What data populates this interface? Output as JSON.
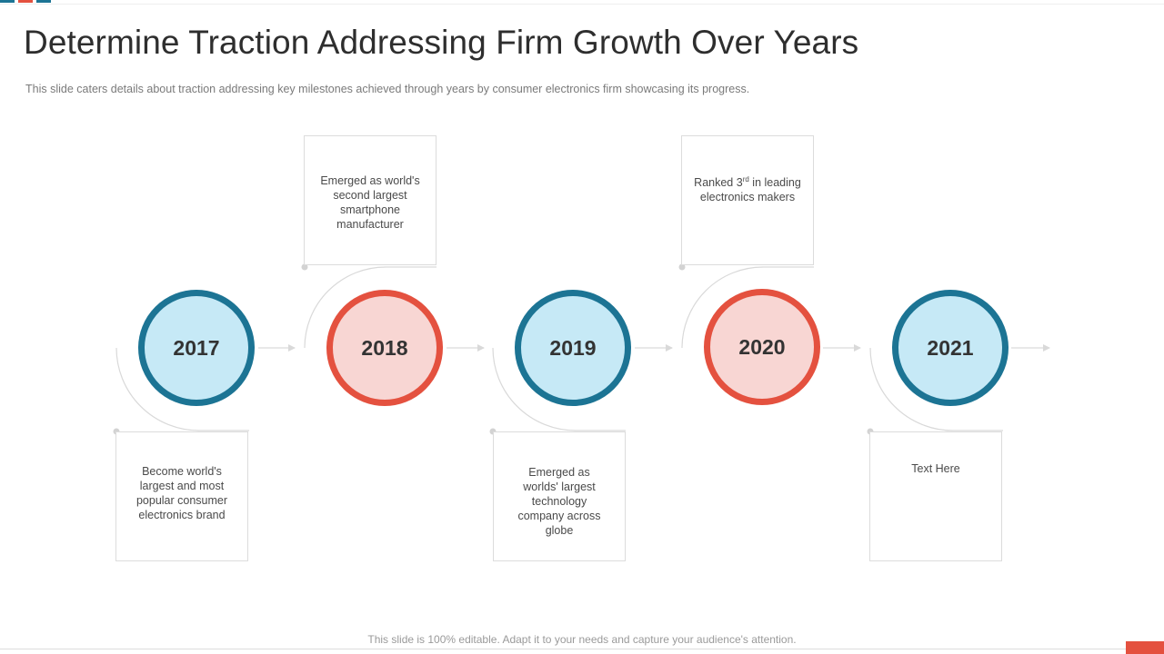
{
  "header": {
    "title": "Determine Traction Addressing Firm Growth Over Years",
    "subtitle": "This slide caters details about traction addressing  key milestones achieved  through  years by consumer electronics firm showcasing its progress."
  },
  "colors": {
    "blue_ring": "#1c7494",
    "blue_fill": "#c6e9f6",
    "red_ring": "#e4513f",
    "red_fill": "#f8d6d3",
    "connector": "#d9d9d9"
  },
  "timeline": [
    {
      "year": "2017",
      "theme": "blue",
      "text_lines": [
        "Become world's",
        "largest and most",
        "popular consumer",
        "electronics brand"
      ]
    },
    {
      "year": "2018",
      "theme": "red",
      "text_lines": [
        "Emerged as world's",
        "second largest",
        "smartphone",
        "manufacturer"
      ]
    },
    {
      "year": "2019",
      "theme": "blue",
      "text_lines": [
        "Emerged as",
        "worlds' largest",
        "technology",
        "company across",
        "globe"
      ]
    },
    {
      "year": "2020",
      "theme": "red",
      "text_lines": [
        "Ranked 3",
        "rd",
        " in leading",
        "electronics makers"
      ]
    },
    {
      "year": "2021",
      "theme": "blue",
      "text_lines": [
        "Text Here"
      ]
    }
  ],
  "footer": {
    "note": "This slide is 100% editable. Adapt it to your needs and capture your audience's attention."
  }
}
